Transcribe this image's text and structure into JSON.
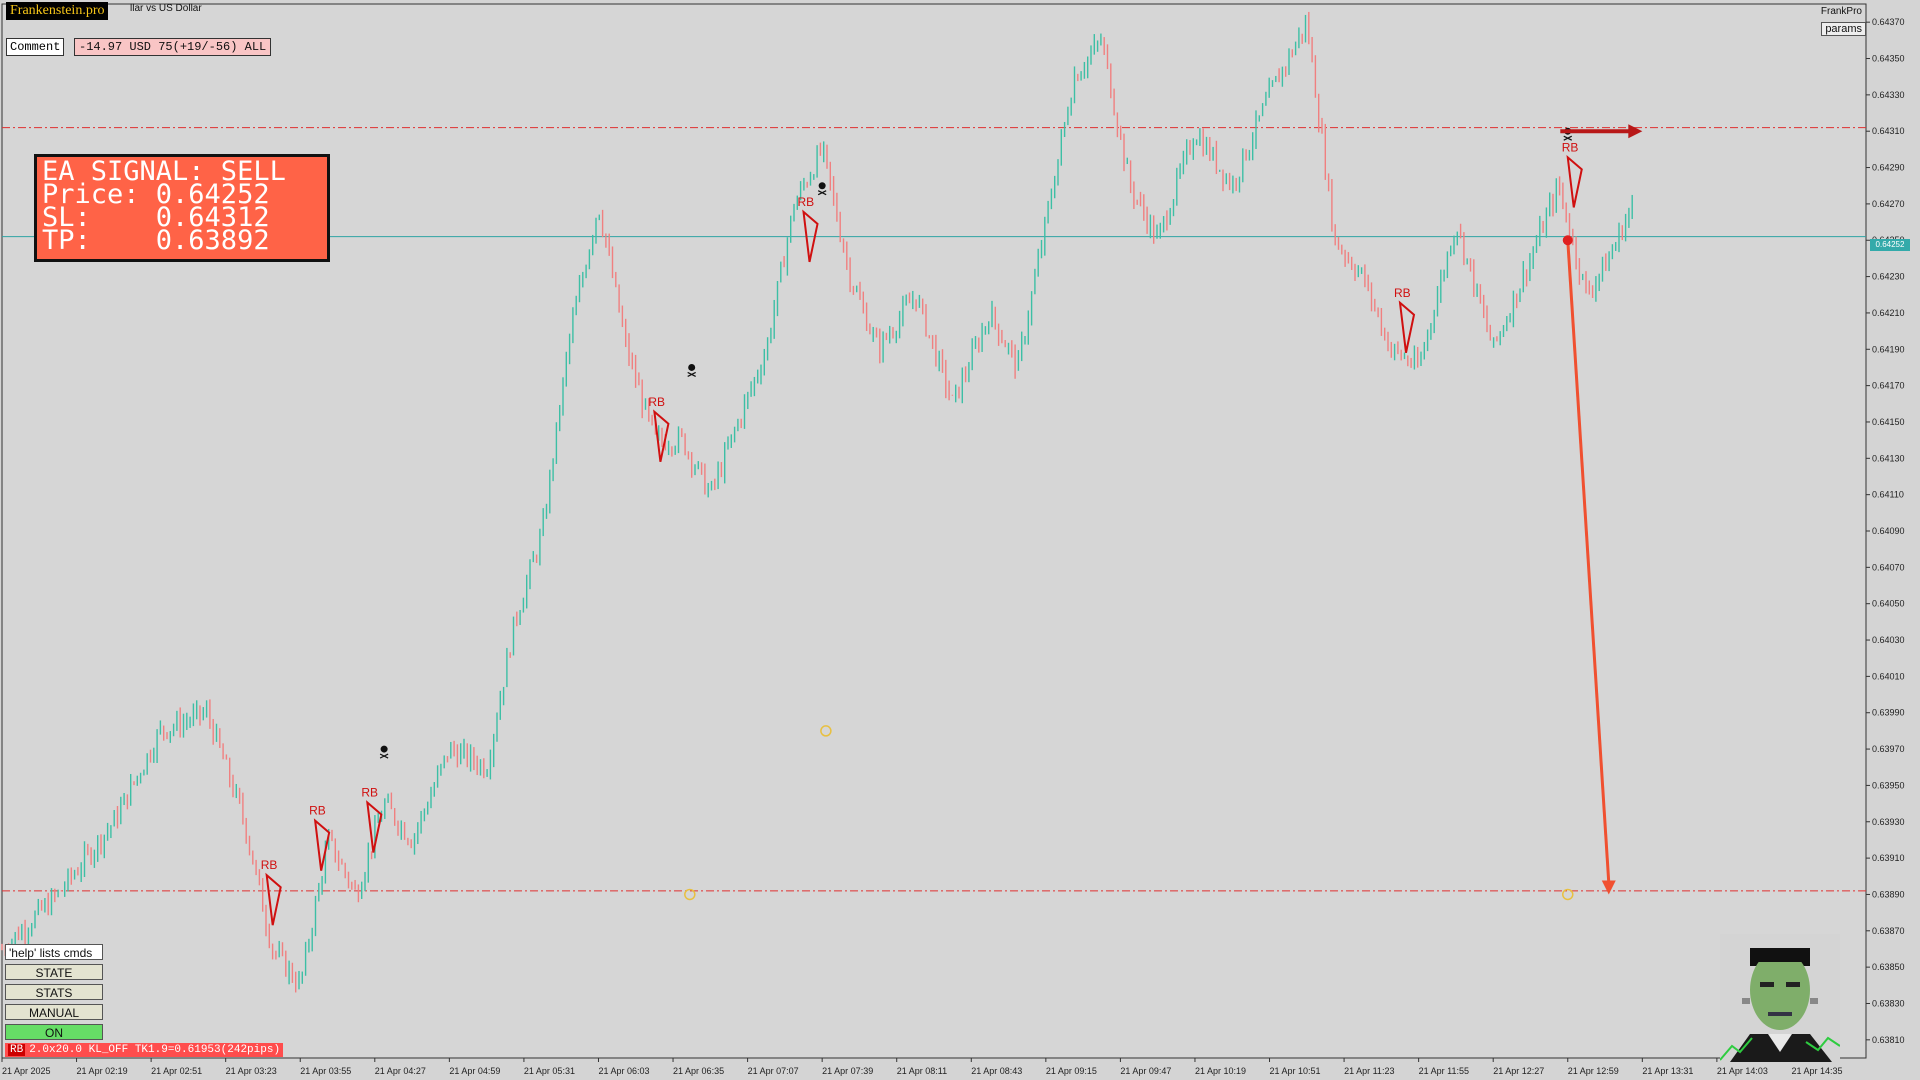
{
  "header": {
    "brand": "Frankenstein.pro",
    "symbol_title": "llar vs US Dollar",
    "expert_name": "FrankPro",
    "params_label": "params",
    "comment_label": "Comment",
    "pnl": "-14.97 USD 75(+19/-56) ALL"
  },
  "signal_panel": {
    "line1": "EA SIGNAL: SELL",
    "line2": "Price: 0.64252",
    "line3": "SL:    0.64312",
    "line4": "TP:    0.63892"
  },
  "commands": {
    "help": "'help' lists cmds",
    "state": "STATE",
    "stats": "STATS",
    "manual": "MANUAL",
    "on": "ON"
  },
  "status": {
    "tag": "RB",
    "text": "2.0x20.0 KL_OFF TK1.9=0.61953(242pips)"
  },
  "current_price": "0.64252",
  "colors": {
    "bull": "#3dbfa5",
    "bear": "#f08080",
    "level_line": "#e03030",
    "price_line": "#2fa3a3",
    "signal_bg": "#ff6347",
    "arrow": "#f05030"
  },
  "chart_data": {
    "type": "candlestick",
    "symbol": "llar vs US Dollar",
    "y_ticks": [
      "0.64370",
      "0.64350",
      "0.64330",
      "0.64310",
      "0.64290",
      "0.64270",
      "0.64250",
      "0.64230",
      "0.64210",
      "0.64190",
      "0.64170",
      "0.64150",
      "0.64130",
      "0.64110",
      "0.64090",
      "0.64070",
      "0.64050",
      "0.64030",
      "0.64010",
      "0.63990",
      "0.63970",
      "0.63950",
      "0.63930",
      "0.63910",
      "0.63890",
      "0.63870",
      "0.63850",
      "0.63830",
      "0.63810"
    ],
    "y_range": [
      0.638,
      0.6438
    ],
    "x_ticks": [
      "21 Apr 2025",
      "21 Apr 02:19",
      "21 Apr 02:51",
      "21 Apr 03:23",
      "21 Apr 03:55",
      "21 Apr 04:27",
      "21 Apr 04:59",
      "21 Apr 05:31",
      "21 Apr 06:03",
      "21 Apr 06:35",
      "21 Apr 07:07",
      "21 Apr 07:39",
      "21 Apr 08:11",
      "21 Apr 08:43",
      "21 Apr 09:15",
      "21 Apr 09:47",
      "21 Apr 10:19",
      "21 Apr 10:51",
      "21 Apr 11:23",
      "21 Apr 11:55",
      "21 Apr 12:27",
      "21 Apr 12:59",
      "21 Apr 13:31",
      "21 Apr 14:03",
      "21 Apr 14:35"
    ],
    "levels": {
      "sl": 0.64312,
      "tp": 0.63892,
      "current": 0.64252
    },
    "price_path": [
      [
        0.0,
        0.6386
      ],
      [
        0.03,
        0.6389
      ],
      [
        0.06,
        0.6393
      ],
      [
        0.085,
        0.6398
      ],
      [
        0.11,
        0.6399
      ],
      [
        0.13,
        0.6393
      ],
      [
        0.145,
        0.6386
      ],
      [
        0.16,
        0.6384
      ],
      [
        0.175,
        0.6392
      ],
      [
        0.19,
        0.6389
      ],
      [
        0.205,
        0.6394
      ],
      [
        0.22,
        0.6392
      ],
      [
        0.24,
        0.6397
      ],
      [
        0.26,
        0.6396
      ],
      [
        0.275,
        0.6404
      ],
      [
        0.29,
        0.6409
      ],
      [
        0.305,
        0.642
      ],
      [
        0.32,
        0.6427
      ],
      [
        0.335,
        0.6419
      ],
      [
        0.35,
        0.6414
      ],
      [
        0.365,
        0.6414
      ],
      [
        0.38,
        0.6411
      ],
      [
        0.395,
        0.6415
      ],
      [
        0.41,
        0.6419
      ],
      [
        0.425,
        0.6427
      ],
      [
        0.44,
        0.643
      ],
      [
        0.455,
        0.6423
      ],
      [
        0.47,
        0.6419
      ],
      [
        0.49,
        0.6422
      ],
      [
        0.51,
        0.6416
      ],
      [
        0.53,
        0.6421
      ],
      [
        0.545,
        0.6418
      ],
      [
        0.56,
        0.6426
      ],
      [
        0.575,
        0.6434
      ],
      [
        0.59,
        0.6436
      ],
      [
        0.605,
        0.6428
      ],
      [
        0.62,
        0.6425
      ],
      [
        0.64,
        0.6431
      ],
      [
        0.66,
        0.6428
      ],
      [
        0.68,
        0.6433
      ],
      [
        0.7,
        0.6437
      ],
      [
        0.715,
        0.6425
      ],
      [
        0.73,
        0.6423
      ],
      [
        0.745,
        0.6419
      ],
      [
        0.76,
        0.6418
      ],
      [
        0.78,
        0.6426
      ],
      [
        0.8,
        0.6419
      ],
      [
        0.82,
        0.6424
      ],
      [
        0.835,
        0.6428
      ],
      [
        0.85,
        0.6422
      ],
      [
        0.862,
        0.6424
      ],
      [
        0.875,
        0.6427
      ]
    ],
    "markers": {
      "rb_labels": [
        [
          0.142,
          0.63905
        ],
        [
          0.168,
          0.63935
        ],
        [
          0.196,
          0.63945
        ],
        [
          0.35,
          0.6416
        ],
        [
          0.43,
          0.6427
        ],
        [
          0.75,
          0.6422
        ],
        [
          0.84,
          0.643
        ]
      ],
      "skulls": [
        [
          0.205,
          0.6397
        ],
        [
          0.37,
          0.6418
        ],
        [
          0.44,
          0.6428
        ],
        [
          0.84,
          0.6431
        ]
      ],
      "yellow_rings": [
        [
          0.442,
          0.6398
        ],
        [
          0.369,
          0.6389
        ],
        [
          0.84,
          0.6389
        ]
      ],
      "signal_arrow": {
        "from": [
          0.84,
          0.6425
        ],
        "to": [
          0.862,
          0.6389
        ]
      },
      "exit_arrow": {
        "from": [
          0.836,
          0.6431
        ],
        "to": [
          0.88,
          0.6431
        ]
      }
    }
  }
}
